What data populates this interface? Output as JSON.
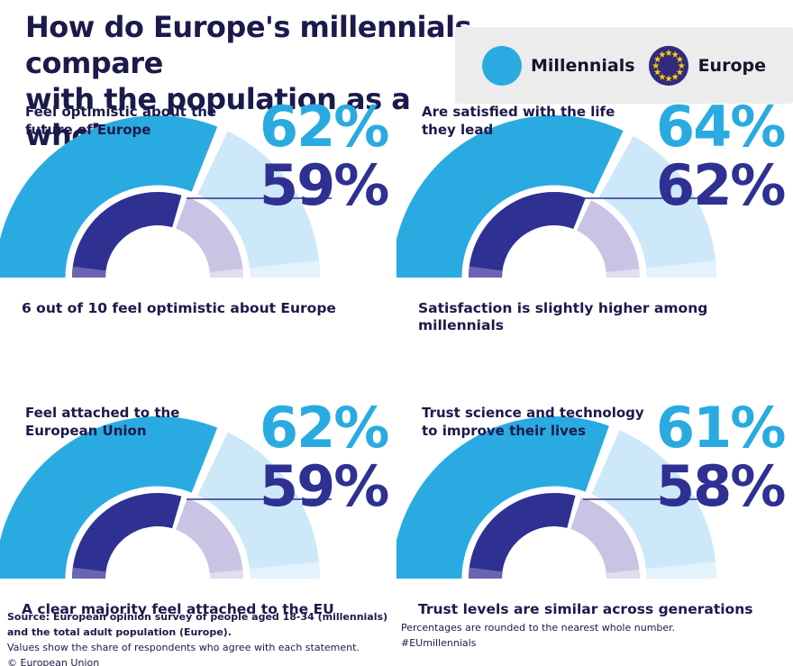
{
  "title": {
    "line1": "How do Europe's millennials compare",
    "line2": "with the population as a whole?"
  },
  "legend": {
    "millennials_label": "Millennials",
    "europe_label": "Europe"
  },
  "colors": {
    "millennials": "#29ABE2",
    "millennials_rest": "#CDE8F9",
    "europe": "#2E3192",
    "europe_rest": "#C9C4E4",
    "ring_gap": "#FFFFFF",
    "inner_cap": "#6A64B2",
    "pointer_line": "#2E3192",
    "dark_text": "#1B1A4B",
    "legend_bg": "#ECECEC",
    "flag_navy": "#312B7D",
    "flag_star": "#FFCC00"
  },
  "chart_data": {
    "type": "gauge",
    "layout": "2x2 grid of semicircular double-ring gauges, outer ring = Millennials, inner ring = Europe",
    "unit": "%",
    "range": [
      0,
      100
    ],
    "legend": [
      "Millennials",
      "Europe"
    ],
    "panels": [
      {
        "question": "Feel optimistic about the future of Europe",
        "caption": "6 out of 10 feel optimistic about Europe",
        "millennials": 62,
        "europe": 59
      },
      {
        "question": "Are satisfied with the life they lead",
        "caption": "Satisfaction is slightly higher among millennials",
        "millennials": 64,
        "europe": 62
      },
      {
        "question": "Feel attached to the European Union",
        "caption": "A clear majority feel attached to the EU",
        "millennials": 62,
        "europe": 59
      },
      {
        "question": "Trust science and technology to improve their lives",
        "caption": "Trust levels are similar across generations",
        "millennials": 61,
        "europe": 58
      }
    ]
  },
  "footer": {
    "left_line1": "Source: European opinion survey of people aged 18-34 (millennials) and the total adult population (Europe).",
    "left_line2": "Values show the share of respondents who agree with each statement.",
    "left_line3": "© European Union",
    "right_line1": "Percentages are rounded to the nearest whole number.",
    "right_line2": "#EUmillennials"
  }
}
